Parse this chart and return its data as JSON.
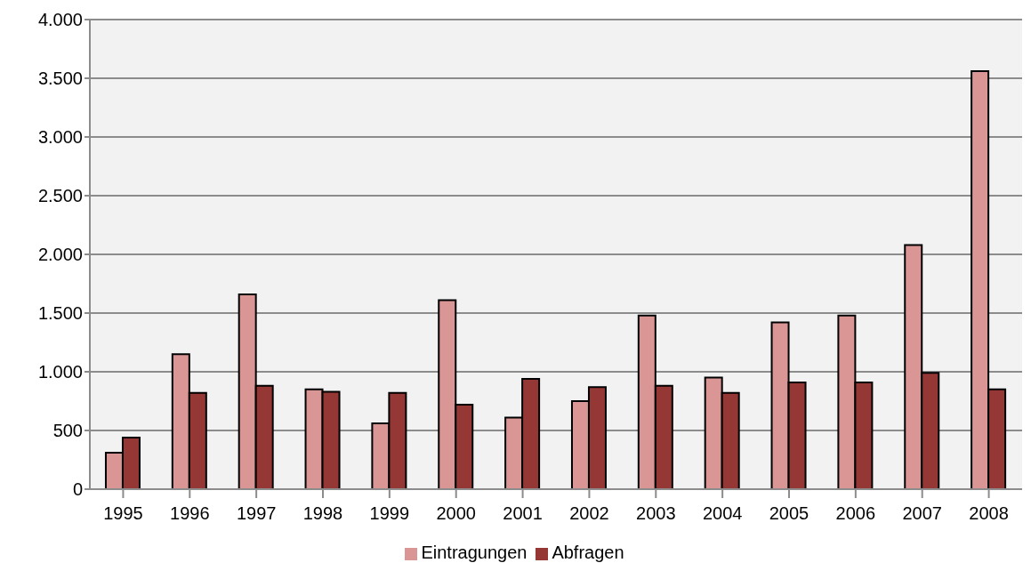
{
  "chart_data": {
    "type": "bar",
    "categories": [
      "1995",
      "1996",
      "1997",
      "1998",
      "1999",
      "2000",
      "2001",
      "2002",
      "2003",
      "2004",
      "2005",
      "2006",
      "2007",
      "2008"
    ],
    "series": [
      {
        "name": "Eintragungen",
        "color": "#da9694",
        "values": [
          310,
          1150,
          1660,
          850,
          560,
          1610,
          610,
          750,
          1480,
          950,
          1420,
          1480,
          2080,
          3560
        ]
      },
      {
        "name": "Abfragen",
        "color": "#953735",
        "values": [
          440,
          820,
          880,
          830,
          820,
          720,
          940,
          870,
          880,
          820,
          910,
          910,
          990,
          850
        ]
      }
    ],
    "ylim": [
      0,
      4000
    ],
    "yticks": [
      {
        "value": 0,
        "label": "0"
      },
      {
        "value": 500,
        "label": "500"
      },
      {
        "value": 1000,
        "label": "1.000"
      },
      {
        "value": 1500,
        "label": "1.500"
      },
      {
        "value": 2000,
        "label": "2.000"
      },
      {
        "value": 2500,
        "label": "2.500"
      },
      {
        "value": 3000,
        "label": "3.000"
      },
      {
        "value": 3500,
        "label": "3.500"
      },
      {
        "value": 4000,
        "label": "4.000"
      }
    ],
    "grid": "y",
    "legend": "bottom"
  }
}
